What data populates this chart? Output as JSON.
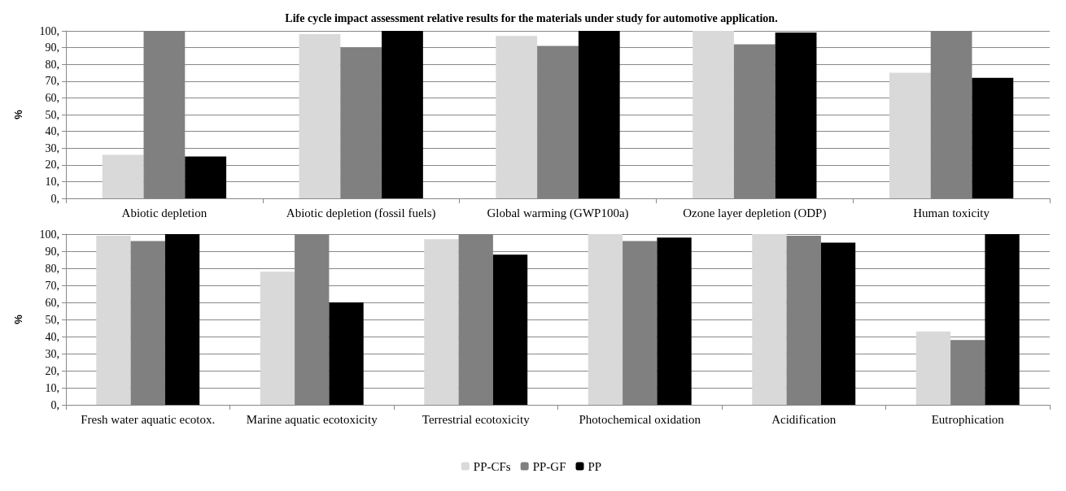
{
  "chart_data": [
    {
      "type": "bar",
      "title": "Life cycle impact assessment relative results for the materials under study for automotive application.",
      "ylabel": "%",
      "categories": [
        "Abiotic depletion",
        "Abiotic depletion (fossil fuels)",
        "Global warming (GWP100a)",
        "Ozone layer depletion (ODP)",
        "Human toxicity"
      ],
      "series": [
        {
          "color": "#d9d9d9",
          "values": [
            26,
            98,
            97,
            100,
            75
          ]
        },
        {
          "color": "#808080",
          "values": [
            100,
            90,
            91,
            92,
            100
          ]
        },
        {
          "color": "#000000",
          "values": [
            25,
            100,
            100,
            99,
            72
          ]
        }
      ],
      "ylim": [
        0,
        100
      ],
      "yticks": [
        {
          "value": 0,
          "label": "0,"
        },
        {
          "value": 10,
          "label": "10,"
        },
        {
          "value": 20,
          "label": "20,"
        },
        {
          "value": 30,
          "label": "30,"
        },
        {
          "value": 40,
          "label": "40,"
        },
        {
          "value": 50,
          "label": "50,"
        },
        {
          "value": 60,
          "label": "60,"
        },
        {
          "value": 70,
          "label": "70,"
        },
        {
          "value": 80,
          "label": "80,"
        },
        {
          "value": 90,
          "label": "90,"
        },
        {
          "value": 100,
          "label": "100,"
        }
      ],
      "grid": "y",
      "legend": false
    },
    {
      "type": "bar",
      "ylabel": "%",
      "categories": [
        "Fresh water aquatic ecotox.",
        "Marine aquatic ecotoxicity",
        "Terrestrial ecotoxicity",
        "Photochemical oxidation",
        "Acidification",
        "Eutrophication"
      ],
      "series": [
        {
          "name": "PP-CFs",
          "color": "#d9d9d9",
          "values": [
            99,
            78,
            97,
            100,
            100,
            43
          ]
        },
        {
          "name": "PP-GF",
          "color": "#808080",
          "values": [
            96,
            100,
            100,
            96,
            99,
            38
          ]
        },
        {
          "name": "PP",
          "color": "#000000",
          "values": [
            100,
            60,
            88,
            98,
            95,
            100
          ]
        }
      ],
      "ylim": [
        0,
        100
      ],
      "yticks": [
        {
          "value": 0,
          "label": "0,"
        },
        {
          "value": 10,
          "label": "10,"
        },
        {
          "value": 20,
          "label": "20,"
        },
        {
          "value": 30,
          "label": "30,"
        },
        {
          "value": 40,
          "label": "40,"
        },
        {
          "value": 50,
          "label": "50,"
        },
        {
          "value": 60,
          "label": "60,"
        },
        {
          "value": 70,
          "label": "70,"
        },
        {
          "value": 80,
          "label": "80,"
        },
        {
          "value": 90,
          "label": "90,"
        },
        {
          "value": 100,
          "label": "100,"
        }
      ],
      "grid": "y",
      "legend": "bottom"
    }
  ]
}
